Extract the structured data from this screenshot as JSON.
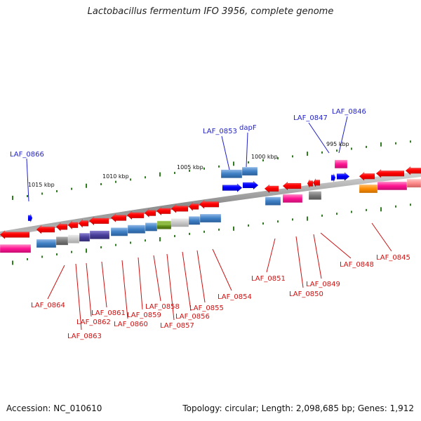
{
  "title": "Lactobacillus fermentum IFO 3956, complete genome",
  "footer": {
    "accession": "Accession: NC_010610",
    "topology": "Topology: circular; Length: 2,098,685 bp; Genes: 1,912"
  },
  "kbp_labels": [
    "1015 kbp",
    "1010 kbp",
    "1005 kbp",
    "1000 kbp",
    "995 kbp"
  ],
  "top_gene_labels": [
    "LAF_0866",
    "LAF_0853",
    "dapF",
    "LAF_0847",
    "LAF_0846"
  ],
  "bottom_gene_labels": [
    "LAF_0864",
    "LAF_0863",
    "LAF_0862",
    "LAF_0861",
    "LAF_0860",
    "LAF_0859",
    "LAF_0858",
    "LAF_0857",
    "LAF_0856",
    "LAF_0855",
    "LAF_0854",
    "LAF_0851",
    "LAF_0850",
    "LAF_0849",
    "LAF_0848",
    "LAF_0845"
  ],
  "colors": {
    "forward_gene": "#1a1aff",
    "reverse_gene": "#ff1a1a",
    "label_top": "#1f1fc8",
    "label_bottom": "#cc1111",
    "backbone": "#8c8c8c",
    "tick": "#2e7d1e",
    "cog_blue": "#3e7fc4",
    "cog_magenta": "#ff1493",
    "cog_purple": "#4a3f9c",
    "cog_gray": "#7a7a7a",
    "cog_olive": "#6b9a1f",
    "cog_orange": "#ff8c00"
  }
}
